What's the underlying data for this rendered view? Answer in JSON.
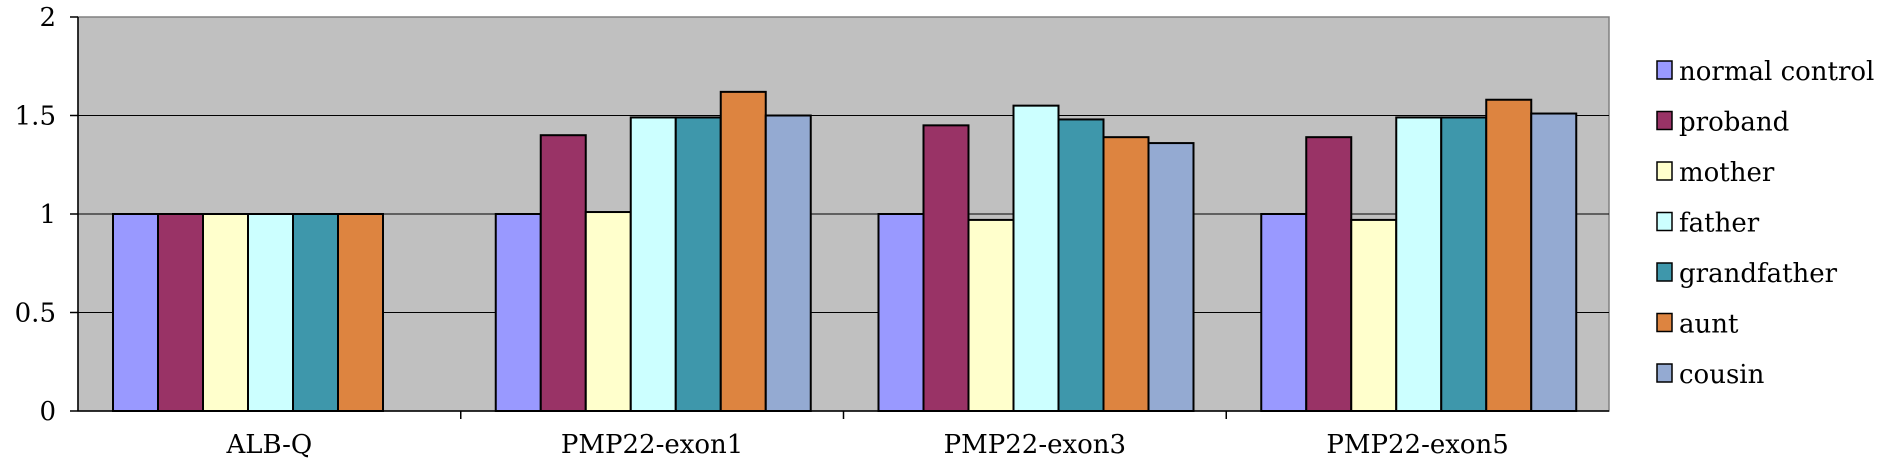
{
  "chart_data": {
    "type": "bar",
    "title": "",
    "xlabel": "",
    "ylabel": "",
    "ylim": [
      0,
      2
    ],
    "yticks": [
      "0",
      "0.5",
      "1",
      "1.5",
      "2"
    ],
    "grid": true,
    "legend_position": "right",
    "plot_background": "#c0c0c0",
    "categories": [
      "ALB-Q",
      "PMP22-exon1",
      "PMP22-exon3",
      "PMP22-exon5"
    ],
    "series": [
      {
        "name": "normal control",
        "color": "#9999ff",
        "values": [
          1.0,
          1.0,
          1.0,
          1.0
        ]
      },
      {
        "name": "proband",
        "color": "#993366",
        "values": [
          1.0,
          1.4,
          1.45,
          1.39
        ]
      },
      {
        "name": "mother",
        "color": "#ffffcc",
        "values": [
          1.0,
          1.01,
          0.97,
          0.97
        ]
      },
      {
        "name": "father",
        "color": "#ccffff",
        "values": [
          1.0,
          1.49,
          1.55,
          1.49
        ]
      },
      {
        "name": "grandfather",
        "color": "#3e97ab",
        "values": [
          1.0,
          1.49,
          1.48,
          1.49
        ]
      },
      {
        "name": "aunt",
        "color": "#dd8440",
        "values": [
          1.0,
          1.62,
          1.39,
          1.58
        ]
      },
      {
        "name": "cousin",
        "color": "#94aad2",
        "values": [
          null,
          1.5,
          1.36,
          1.51
        ]
      }
    ]
  }
}
